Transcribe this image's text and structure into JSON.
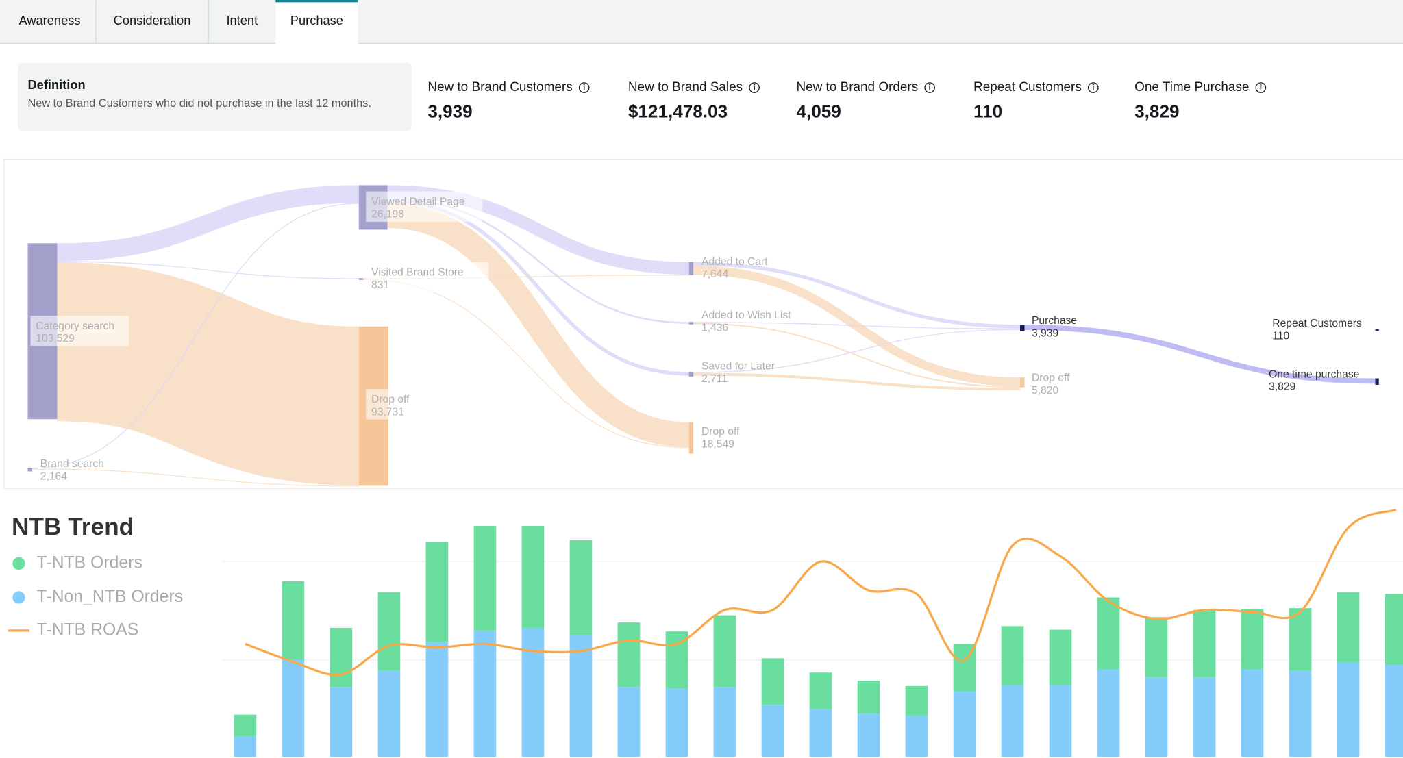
{
  "tabs": [
    "Awareness",
    "Consideration",
    "Intent",
    "Purchase"
  ],
  "active_tab_index": 3,
  "definition": {
    "title": "Definition",
    "text": "New to Brand Customers who did not purchase in the last 12 months."
  },
  "metrics": [
    {
      "label": "New to Brand Customers",
      "value": "3,939"
    },
    {
      "label": "New to Brand Sales",
      "value": "$121,478.03"
    },
    {
      "label": "New to Brand Orders",
      "value": "4,059"
    },
    {
      "label": "Repeat Customers",
      "value": "110"
    },
    {
      "label": "One Time Purchase",
      "value": "3,829"
    }
  ],
  "sankey": {
    "nodes": [
      {
        "label": "Category search",
        "value": 103529,
        "value_label": "103,529"
      },
      {
        "label": "Brand search",
        "value": 2164,
        "value_label": "2,164"
      },
      {
        "label": "Viewed Detail Page",
        "value": 26198,
        "value_label": "26,198"
      },
      {
        "label": "Visited Brand Store",
        "value": 831,
        "value_label": "831"
      },
      {
        "label": "Drop off",
        "value": 93731,
        "value_label": "93,731"
      },
      {
        "label": "Added to Cart",
        "value": 7644,
        "value_label": "7,644"
      },
      {
        "label": "Added to Wish List",
        "value": 1436,
        "value_label": "1,436"
      },
      {
        "label": "Saved for Later",
        "value": 2711,
        "value_label": "2,711"
      },
      {
        "label": "Drop off",
        "value": 18549,
        "value_label": "18,549"
      },
      {
        "label": "Purchase",
        "value": 3939,
        "value_label": "3,939"
      },
      {
        "label": "Drop off",
        "value": 5820,
        "value_label": "5,820"
      },
      {
        "label": "Repeat Customers",
        "value": 110,
        "value_label": "110"
      },
      {
        "label": "One time purchase",
        "value": 3829,
        "value_label": "3,829"
      }
    ]
  },
  "chart_data": {
    "type": "bar",
    "stacked": true,
    "title": "NTB Trend",
    "ylim": [
      0,
      300
    ],
    "series": [
      {
        "name": "T-NTB Orders",
        "color": "#6ade9f",
        "values": [
          24,
          88,
          66,
          88,
          112,
          117,
          114,
          106,
          72,
          64,
          80,
          52,
          41,
          37,
          33,
          53,
          66,
          62,
          80,
          67,
          75,
          67,
          70,
          79,
          79
        ]
      },
      {
        "name": "T-Non_NTB Orders",
        "color": "#84cdfa",
        "values": [
          23,
          108,
          78,
          96,
          128,
          141,
          144,
          136,
          78,
          76,
          78,
          58,
          53,
          48,
          46,
          73,
          80,
          80,
          98,
          89,
          89,
          98,
          96,
          105,
          103
        ]
      },
      {
        "name": "T-NTB ROAS",
        "type": "line",
        "color": "#f8a84a",
        "values": [
          126,
          106,
          92,
          124,
          122,
          126,
          118,
          118,
          130,
          126,
          164,
          164,
          218,
          186,
          182,
          108,
          236,
          224,
          174,
          154,
          164,
          162,
          162,
          256,
          276
        ]
      }
    ]
  }
}
